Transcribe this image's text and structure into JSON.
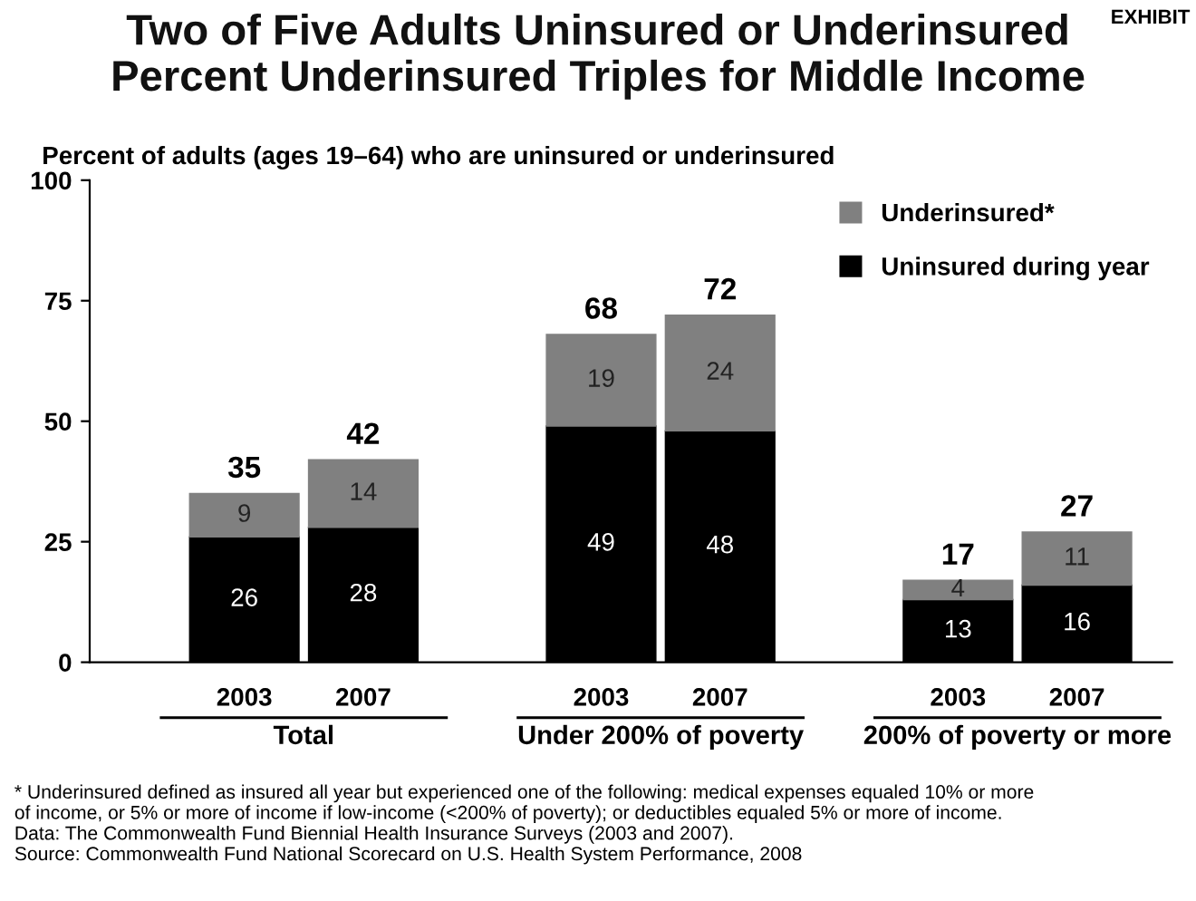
{
  "chart_data": {
    "type": "bar",
    "stacked": true,
    "title": "Two of Five Adults Uninsured or Underinsured\nPercent Underinsured Triples for Middle Income",
    "ylabel": "Percent of adults (ages 19–64) who are uninsured or underinsured",
    "categories": [
      "2003",
      "2007",
      null,
      "2003",
      "2007",
      null,
      "2003",
      "2007"
    ],
    "series": [
      {
        "name": "Uninsured during year",
        "color": "#000000",
        "values": [
          26,
          28,
          null,
          49,
          48,
          null,
          13,
          16
        ]
      },
      {
        "name": "Underinsured*",
        "color": "#808080",
        "values": [
          9,
          14,
          null,
          19,
          24,
          null,
          4,
          11
        ]
      }
    ],
    "totals": [
      "35",
      "42",
      null,
      "68",
      "72",
      null,
      "17",
      "27"
    ],
    "data_labels": true,
    "ylim": [
      0,
      100
    ],
    "yticks": [
      0,
      25,
      50,
      75,
      100
    ],
    "grid": false,
    "legend": "top right",
    "annotations": [
      "Total",
      "Under 200% of poverty",
      "200% of poverty or more",
      "EXHIBIT",
      "* Underinsured defined as insured all year but experienced one of the following: medical expenses equaled 10% or more\nof income, or 5% or more of income if low-income (<200% of poverty); or deductibles equaled 5% or more of income.\nData: The Commonwealth Fund Biennial Health Insurance Surveys (2003 and 2007).\nSource: Commonwealth Fund National Scorecard on U.S. Health System Performance, 2008"
    ]
  }
}
